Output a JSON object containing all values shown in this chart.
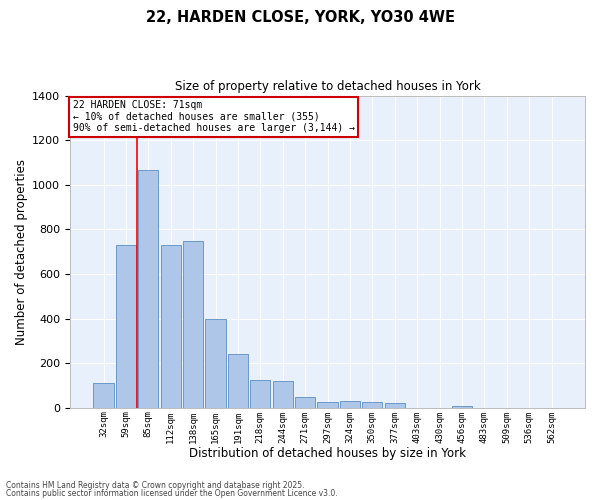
{
  "title_line1": "22, HARDEN CLOSE, YORK, YO30 4WE",
  "title_line2": "Size of property relative to detached houses in York",
  "xlabel": "Distribution of detached houses by size in York",
  "ylabel": "Number of detached properties",
  "bar_labels": [
    "32sqm",
    "59sqm",
    "85sqm",
    "112sqm",
    "138sqm",
    "165sqm",
    "191sqm",
    "218sqm",
    "244sqm",
    "271sqm",
    "297sqm",
    "324sqm",
    "350sqm",
    "377sqm",
    "403sqm",
    "430sqm",
    "456sqm",
    "483sqm",
    "509sqm",
    "536sqm",
    "562sqm"
  ],
  "bar_values": [
    110,
    730,
    1065,
    730,
    750,
    400,
    240,
    125,
    120,
    50,
    25,
    30,
    25,
    20,
    0,
    0,
    10,
    0,
    0,
    0,
    0
  ],
  "bar_color": "#aec6e8",
  "bar_edgecolor": "#5b8ec4",
  "background_color": "#e8f0fb",
  "grid_color": "#ffffff",
  "red_line_x": 1.5,
  "annotation_title": "22 HARDEN CLOSE: 71sqm",
  "annotation_line2": "← 10% of detached houses are smaller (355)",
  "annotation_line3": "90% of semi-detached houses are larger (3,144) →",
  "annotation_box_color": "#cc0000",
  "ylim": [
    0,
    1400
  ],
  "yticks": [
    0,
    200,
    400,
    600,
    800,
    1000,
    1200,
    1400
  ],
  "footnote1": "Contains HM Land Registry data © Crown copyright and database right 2025.",
  "footnote2": "Contains public sector information licensed under the Open Government Licence v3.0."
}
